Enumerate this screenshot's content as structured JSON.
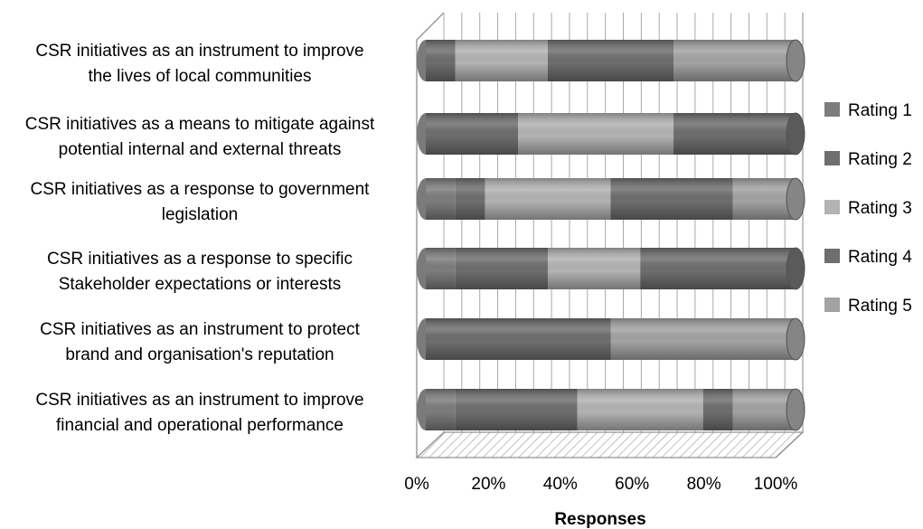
{
  "chart_data": {
    "type": "bar",
    "orientation": "horizontal",
    "stacked": "100%",
    "style": "3d-cylinder",
    "title": "",
    "xlabel": "Responses",
    "ylabel": "",
    "xlim": [
      0,
      100
    ],
    "x_ticks": [
      "0%",
      "20%",
      "40%",
      "60%",
      "80%",
      "100%"
    ],
    "grid": true,
    "legend_position": "right",
    "categories": [
      "CSR initiatives as an instrument to improve the lives of local communities",
      "CSR initiatives as a means to mitigate against potential internal and external threats",
      "CSR initiatives as a response to government legislation",
      "CSR initiatives as a response to specific Stakeholder expectations or interests",
      "CSR initiatives as an instrument to protect brand and  organisation's reputation",
      "CSR initiatives as an instrument to improve financial and operational performance"
    ],
    "category_lines": [
      [
        "CSR initiatives as an instrument to improve",
        "the lives of local communities"
      ],
      [
        "CSR initiatives as a means to mitigate against",
        "potential internal and external threats"
      ],
      [
        "CSR initiatives as a response to government",
        "legislation"
      ],
      [
        "CSR initiatives as a response to specific",
        "Stakeholder expectations or interests"
      ],
      [
        "CSR initiatives as an instrument to protect",
        "brand and  organisation's reputation"
      ],
      [
        "CSR initiatives as an instrument to improve",
        "financial and operational performance"
      ]
    ],
    "series": [
      {
        "name": "Rating 1",
        "color": "#7d7d7d",
        "values": [
          0,
          0,
          8,
          8,
          0,
          8
        ]
      },
      {
        "name": "Rating 2",
        "color": "#6e6e6e",
        "values": [
          8,
          25,
          8,
          25,
          50,
          33
        ]
      },
      {
        "name": "Rating 3",
        "color": "#b3b3b3",
        "values": [
          25,
          42,
          34,
          25,
          0,
          34
        ]
      },
      {
        "name": "Rating 4",
        "color": "#6e6e6e",
        "values": [
          34,
          33,
          33,
          42,
          0,
          8
        ]
      },
      {
        "name": "Rating 5",
        "color": "#a3a3a3",
        "values": [
          33,
          0,
          17,
          0,
          50,
          17
        ]
      }
    ]
  }
}
